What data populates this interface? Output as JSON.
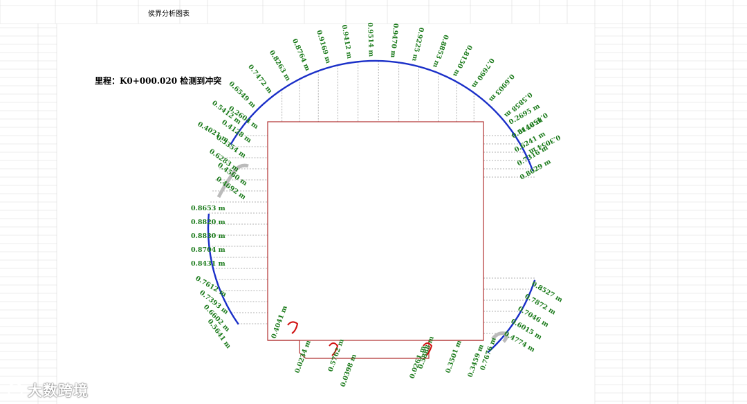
{
  "sheet": {
    "title": "侯界分析图表",
    "mileage_line": "里程：K0+000.020  检测到冲突"
  },
  "colors": {
    "arc": "#1a2fc8",
    "label": "#1a7a1a",
    "box": "#b03030",
    "grid": "#d9d9d9",
    "dashed": "#999999"
  },
  "left_labels": [
    "0.2604 m",
    "0.4128 m",
    "0.5354 m",
    "0.6283 m",
    "0.4560 m",
    "0.4692 m"
  ],
  "left_vertical_labels": [
    "0.8653 m",
    "0.8820 m",
    "0.8830 m",
    "0.8704 m",
    "0.8431 m",
    "0.7612 m",
    "0.7393 m",
    "0.6602 m",
    "0.5641 m"
  ],
  "top_labels": [
    "0.4021 m",
    "0.5412 m",
    "0.6549 m",
    "0.7472 m",
    "0.8263 m",
    "0.8764 m",
    "0.9169 m",
    "0.9412 m",
    "0.9514 m",
    "0.9470 m",
    "0.9225 m",
    "0.8853 m",
    "0.8150 m",
    "0.7690 m",
    "0.6903 m",
    "0.5858 m",
    "0.4587 m",
    "0.3054 m"
  ],
  "right_labels": [
    "0.2695 m",
    "0.5140 m",
    "0.6241 m",
    "0.7316 m",
    "0.8029 m"
  ],
  "right_lower_labels": [
    "0.8527 m",
    "0.7872 m",
    "0.7046 m",
    "0.6015 m",
    "0.4774 m"
  ],
  "bottom_labels": [
    "0.4041 m",
    "0.0234 m",
    "0.5762 m",
    "0.0398 m",
    "0.5888 m",
    "0.0261 m",
    "0.3501 m",
    "0.3459 m",
    "0.7676 m"
  ],
  "watermark": "大数跨境"
}
